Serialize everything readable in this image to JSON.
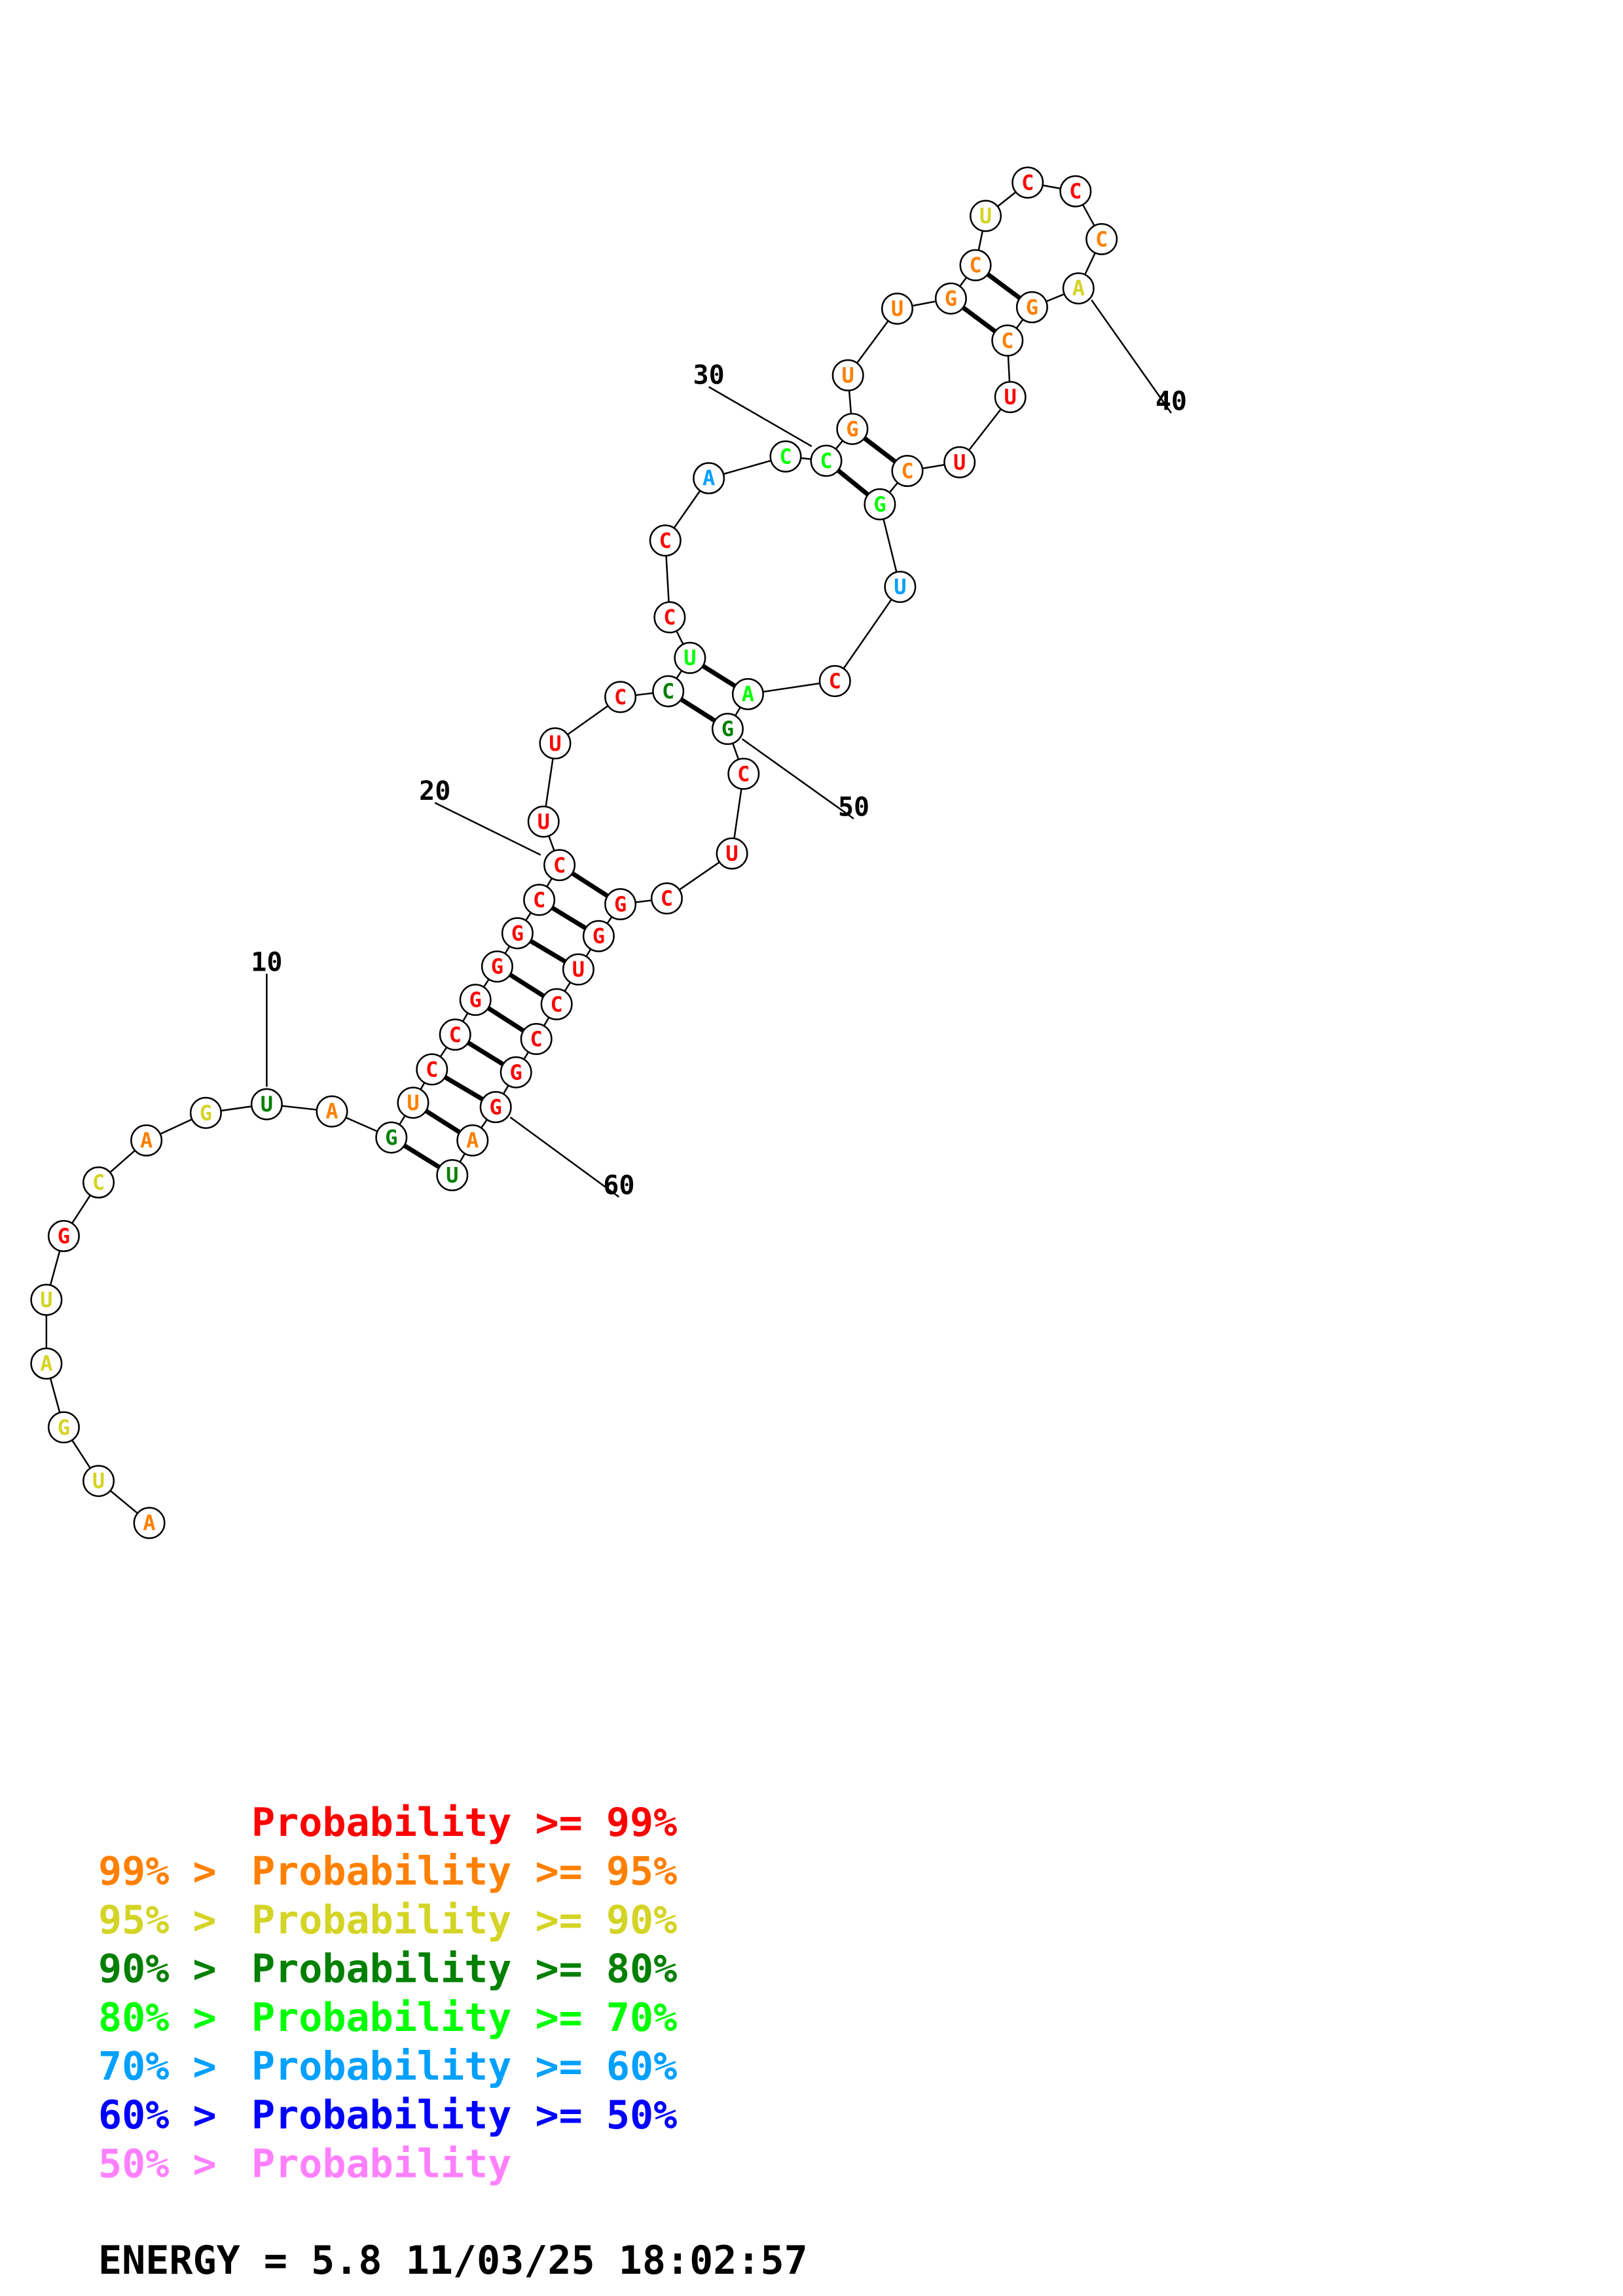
{
  "structure": {
    "nucleotides": [
      {
        "n": 1,
        "base": "A",
        "cls": 1
      },
      {
        "n": 2,
        "base": "U",
        "cls": 2
      },
      {
        "n": 3,
        "base": "G",
        "cls": 2
      },
      {
        "n": 4,
        "base": "A",
        "cls": 2
      },
      {
        "n": 5,
        "base": "U",
        "cls": 2
      },
      {
        "n": 6,
        "base": "G",
        "cls": 0
      },
      {
        "n": 7,
        "base": "C",
        "cls": 2
      },
      {
        "n": 8,
        "base": "A",
        "cls": 1
      },
      {
        "n": 9,
        "base": "G",
        "cls": 2
      },
      {
        "n": 10,
        "base": "U",
        "cls": 3
      },
      {
        "n": 11,
        "base": "A",
        "cls": 1
      },
      {
        "n": 12,
        "base": "G",
        "cls": 3
      },
      {
        "n": 13,
        "base": "U",
        "cls": 1
      },
      {
        "n": 14,
        "base": "C",
        "cls": 0
      },
      {
        "n": 15,
        "base": "C",
        "cls": 0
      },
      {
        "n": 16,
        "base": "G",
        "cls": 0
      },
      {
        "n": 17,
        "base": "G",
        "cls": 0
      },
      {
        "n": 18,
        "base": "G",
        "cls": 0
      },
      {
        "n": 19,
        "base": "C",
        "cls": 0
      },
      {
        "n": 20,
        "base": "C",
        "cls": 0
      },
      {
        "n": 21,
        "base": "U",
        "cls": 0
      },
      {
        "n": 22,
        "base": "U",
        "cls": 0
      },
      {
        "n": 23,
        "base": "C",
        "cls": 0
      },
      {
        "n": 24,
        "base": "C",
        "cls": 3
      },
      {
        "n": 25,
        "base": "U",
        "cls": 4
      },
      {
        "n": 26,
        "base": "C",
        "cls": 0
      },
      {
        "n": 27,
        "base": "C",
        "cls": 0
      },
      {
        "n": 28,
        "base": "A",
        "cls": 5
      },
      {
        "n": 29,
        "base": "C",
        "cls": 4
      },
      {
        "n": 30,
        "base": "C",
        "cls": 4
      },
      {
        "n": 31,
        "base": "G",
        "cls": 1
      },
      {
        "n": 32,
        "base": "U",
        "cls": 1
      },
      {
        "n": 33,
        "base": "U",
        "cls": 1
      },
      {
        "n": 34,
        "base": "G",
        "cls": 1
      },
      {
        "n": 35,
        "base": "C",
        "cls": 1
      },
      {
        "n": 36,
        "base": "U",
        "cls": 2
      },
      {
        "n": 37,
        "base": "C",
        "cls": 0
      },
      {
        "n": 38,
        "base": "C",
        "cls": 0
      },
      {
        "n": 39,
        "base": "C",
        "cls": 1
      },
      {
        "n": 40,
        "base": "A",
        "cls": 2
      },
      {
        "n": 41,
        "base": "G",
        "cls": 1
      },
      {
        "n": 42,
        "base": "C",
        "cls": 1
      },
      {
        "n": 43,
        "base": "U",
        "cls": 0
      },
      {
        "n": 44,
        "base": "U",
        "cls": 0
      },
      {
        "n": 45,
        "base": "C",
        "cls": 1
      },
      {
        "n": 46,
        "base": "G",
        "cls": 4
      },
      {
        "n": 47,
        "base": "U",
        "cls": 5
      },
      {
        "n": 48,
        "base": "C",
        "cls": 0
      },
      {
        "n": 49,
        "base": "A",
        "cls": 4
      },
      {
        "n": 50,
        "base": "G",
        "cls": 3
      },
      {
        "n": 51,
        "base": "C",
        "cls": 0
      },
      {
        "n": 52,
        "base": "U",
        "cls": 0
      },
      {
        "n": 53,
        "base": "C",
        "cls": 0
      },
      {
        "n": 54,
        "base": "G",
        "cls": 0
      },
      {
        "n": 55,
        "base": "G",
        "cls": 0
      },
      {
        "n": 56,
        "base": "U",
        "cls": 0
      },
      {
        "n": 57,
        "base": "C",
        "cls": 0
      },
      {
        "n": 58,
        "base": "C",
        "cls": 0
      },
      {
        "n": 59,
        "base": "G",
        "cls": 0
      },
      {
        "n": 60,
        "base": "G",
        "cls": 0
      },
      {
        "n": 61,
        "base": "A",
        "cls": 1
      },
      {
        "n": 62,
        "base": "U",
        "cls": 3
      }
    ],
    "base_pairs": [
      [
        12,
        62
      ],
      [
        13,
        61
      ],
      [
        14,
        60
      ],
      [
        15,
        59
      ],
      [
        16,
        58
      ],
      [
        17,
        57
      ],
      [
        18,
        56
      ],
      [
        19,
        55
      ],
      [
        20,
        54
      ],
      [
        24,
        50
      ],
      [
        25,
        49
      ],
      [
        30,
        46
      ],
      [
        31,
        45
      ],
      [
        34,
        42
      ],
      [
        35,
        41
      ]
    ],
    "position_labels": [
      {
        "text": "10",
        "n": 10
      },
      {
        "text": "20",
        "n": 20
      },
      {
        "text": "30",
        "n": 30
      },
      {
        "text": "40",
        "n": 40
      },
      {
        "text": "50",
        "n": 50
      },
      {
        "text": "60",
        "n": 60
      }
    ]
  },
  "colors": {
    "classes": [
      "#ff0000",
      "#ff8000",
      "#d4d426",
      "#008000",
      "#00ff00",
      "#00a0ff",
      "#0000ff",
      "#ff80ff"
    ],
    "node_fill": "#ffffff",
    "node_stroke": "#000000",
    "text": "#000000"
  },
  "legend": [
    {
      "prefix": "",
      "text": "Probability >= 99%"
    },
    {
      "prefix": "99% > ",
      "text": "Probability >= 95%"
    },
    {
      "prefix": "95% > ",
      "text": "Probability >= 90%"
    },
    {
      "prefix": "90% > ",
      "text": "Probability >= 80%"
    },
    {
      "prefix": "80% > ",
      "text": "Probability >= 70%"
    },
    {
      "prefix": "70% > ",
      "text": "Probability >= 60%"
    },
    {
      "prefix": "60% > ",
      "text": "Probability >= 50%"
    },
    {
      "prefix": "50% > ",
      "text": "Probability"
    }
  ],
  "energy": "ENERGY = 5.8  11/03/25 18:02:57"
}
